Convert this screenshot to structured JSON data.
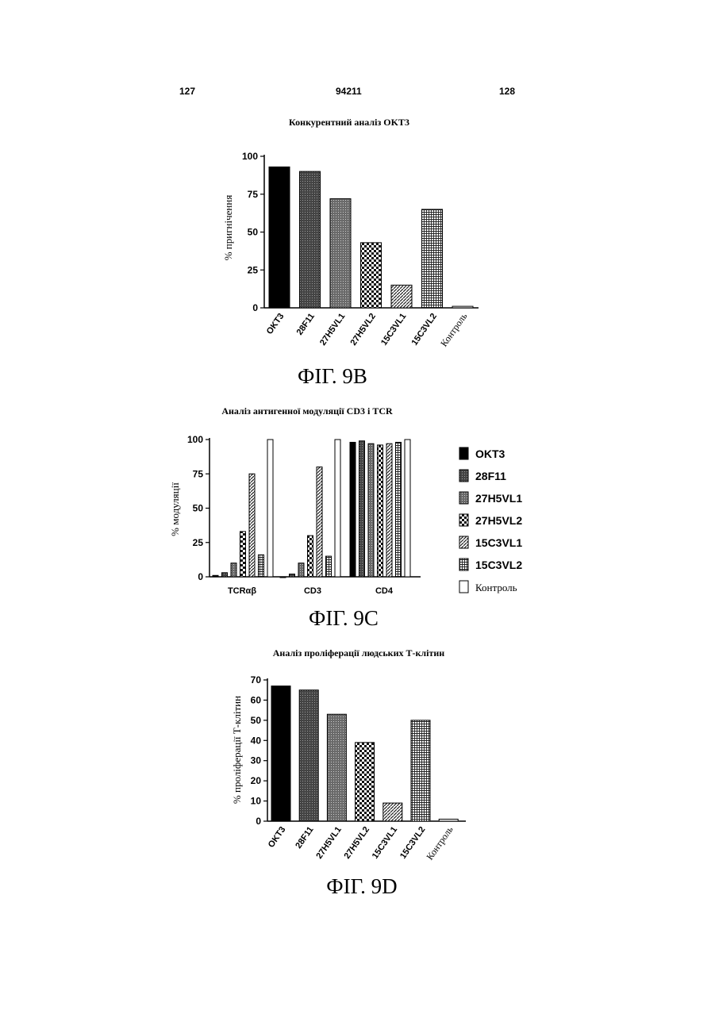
{
  "header": {
    "left": "127",
    "center": "94211",
    "right": "128"
  },
  "chart_data": [
    {
      "type": "bar",
      "title": "Конкурентний аналіз OKT3",
      "ylabel": "% пригнічення",
      "xlabel": "",
      "ylim": [
        0,
        100
      ],
      "yticks": [
        0,
        25,
        50,
        75,
        100
      ],
      "categories": [
        "OKT3",
        "28F11",
        "27H5VL1",
        "27H5VL2",
        "15C3VL1",
        "15C3VL2",
        "Контроль"
      ],
      "values": [
        93,
        90,
        72,
        43,
        15,
        65,
        1
      ],
      "caption": "ФІГ. 9B"
    },
    {
      "type": "bar",
      "title": "Аналіз антигенної модуляції CD3 і TCR",
      "ylabel": "% модуляції",
      "xlabel": "",
      "ylim": [
        0,
        100
      ],
      "yticks": [
        0,
        25,
        50,
        75,
        100
      ],
      "categories": [
        "TCRαβ",
        "CD3",
        "CD4"
      ],
      "series": [
        {
          "name": "OKT3",
          "values": [
            1,
            0,
            98
          ]
        },
        {
          "name": "28F11",
          "values": [
            3,
            2,
            99
          ]
        },
        {
          "name": "27H5VL1",
          "values": [
            10,
            10,
            97
          ]
        },
        {
          "name": "27H5VL2",
          "values": [
            33,
            30,
            96
          ]
        },
        {
          "name": "15C3VL1",
          "values": [
            75,
            80,
            97
          ]
        },
        {
          "name": "15C3VL2",
          "values": [
            16,
            15,
            98
          ]
        },
        {
          "name": "Контроль",
          "values": [
            100,
            100,
            100
          ]
        }
      ],
      "legend": "right",
      "caption": "ФІГ. 9C"
    },
    {
      "type": "bar",
      "title": "Аналіз проліферації людських Т-клітин",
      "ylabel": "% проліферації Т-клітин",
      "xlabel": "",
      "ylim": [
        0,
        70
      ],
      "yticks": [
        0,
        10,
        20,
        30,
        40,
        50,
        60,
        70
      ],
      "categories": [
        "OKT3",
        "28F11",
        "27H5VL1",
        "27H5VL2",
        "15C3VL1",
        "15C3VL2",
        "Контроль"
      ],
      "values": [
        67,
        65,
        53,
        39,
        9,
        50,
        1
      ],
      "caption": "ФІГ. 9D"
    }
  ]
}
